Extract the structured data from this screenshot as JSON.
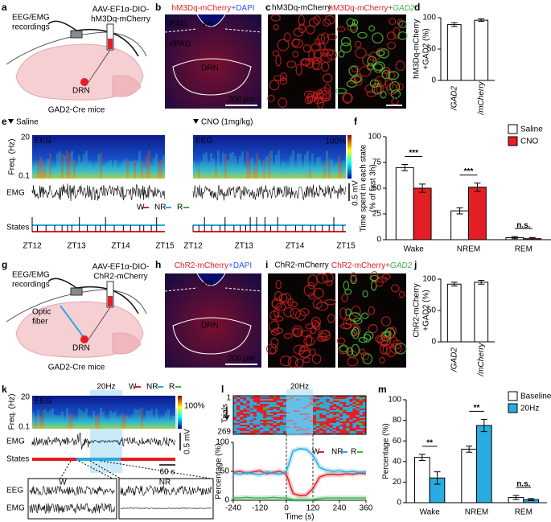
{
  "panel_labels": [
    "a",
    "b",
    "c",
    "d",
    "e",
    "f",
    "g",
    "h",
    "i",
    "j",
    "k",
    "l",
    "m"
  ],
  "state_colors": [
    "#e31e24",
    "#29abe2",
    "#39b54a"
  ],
  "a": {
    "recording": [
      "EEG/EMG",
      "recordings"
    ],
    "virus": [
      "AAV-EF1α-DIO-",
      "hM3Dq-mCherry"
    ],
    "region": "DRN",
    "mice": "GAD2-Cre mice"
  },
  "b": {
    "title": [
      "hM3Dq-mCherry",
      "+DAPI"
    ],
    "regions": [
      "lPAG",
      "Aq",
      "vlPAG",
      "DRN"
    ],
    "scale": "200 μm"
  },
  "c": {
    "left": "hM3Dq-mCherry",
    "right": [
      "hM3Dq-mCherry",
      "+",
      "GAD2"
    ],
    "scale": "20 μm"
  },
  "e": {
    "left_label": "Saline",
    "right_label": "CNO (1mg/kg)",
    "eeg": "EEG",
    "freq_label": "Freq. (Hz)",
    "freq_ticks": [
      20,
      0.1
    ],
    "emg": "EMG",
    "colorbar_max": "100%",
    "emg_scale": "0.5 mV",
    "states_legend": [
      "W",
      "NR",
      "R"
    ],
    "states": "States",
    "zt_ticks": [
      "ZT12",
      "ZT13",
      "ZT14",
      "ZT15"
    ]
  },
  "g": {
    "recording": [
      "EEG/EMG",
      "recordings"
    ],
    "virus": [
      "AAV-EF1α-DIO-",
      "ChR2-mCherry"
    ],
    "fiber": [
      "Optic",
      "fiber"
    ],
    "region": "DRN",
    "mice": "GAD2-Cre mice"
  },
  "h": {
    "title": [
      "ChR2-mCherry",
      "+DAPI"
    ],
    "regions": [
      "Aq",
      "DRN"
    ],
    "scale": "200 μm"
  },
  "i": {
    "left": "ChR2-mCherry",
    "right": [
      "ChR2-mCherry",
      "+",
      "GAD2"
    ]
  },
  "k": {
    "stim": "20Hz",
    "states_legend": [
      "W",
      "NR",
      "R"
    ],
    "eeg": "EEG",
    "freq_label": "Freq. (Hz)",
    "freq_ticks": [
      20,
      0.1
    ],
    "colorbar_max": "100%",
    "emg": "EMG",
    "emg_scale": "0.5 mV",
    "states": "States",
    "time_scale": "60 s",
    "inset_labels": [
      "W",
      "NR"
    ],
    "inset_traces": [
      "EEG",
      "EMG"
    ]
  },
  "chart_data": [
    {
      "type": "bar",
      "categories": [
        "/GAD2",
        "/mCherry"
      ],
      "values": [
        89,
        96
      ],
      "errors": [
        3,
        2
      ],
      "color": "#ffffff",
      "ylabel": [
        "hM3Dq-mCherry",
        "+GAD2 (%)"
      ],
      "ylim": [
        0,
        100
      ],
      "yticks": [
        0,
        50,
        100
      ]
    },
    {
      "type": "bar",
      "categories": [
        "Wake",
        "NREM",
        "REM"
      ],
      "series": [
        {
          "name": "Saline",
          "color": "#ffffff",
          "values": [
            70,
            28,
            2
          ],
          "errors": [
            3,
            3,
            1
          ]
        },
        {
          "name": "CNO",
          "color": "#e31e24",
          "values": [
            50,
            51,
            1
          ],
          "errors": [
            4,
            4,
            1
          ]
        }
      ],
      "ylabel": [
        "Time spent in each state",
        "(% of first 3h)"
      ],
      "ylim": [
        0,
        100
      ],
      "yticks": [
        0,
        25,
        50,
        75,
        100
      ],
      "annotations": [
        "***",
        "***",
        "n.s."
      ]
    },
    {
      "type": "bar",
      "categories": [
        "/GAD2",
        "/mCherry"
      ],
      "values": [
        92,
        95
      ],
      "errors": [
        3,
        3
      ],
      "color": "#ffffff",
      "ylabel": [
        "ChR2-mCherry",
        "+GAD2 (%)"
      ],
      "ylim": [
        0,
        100
      ],
      "yticks": [
        0,
        50,
        100
      ]
    },
    {
      "type": "bar",
      "categories": [
        "Wake",
        "NREM",
        "REM"
      ],
      "series": [
        {
          "name": "Baseline",
          "color": "#ffffff",
          "values": [
            44,
            52,
            5
          ],
          "errors": [
            3,
            3,
            2
          ]
        },
        {
          "name": "20Hz",
          "color": "#29abe2",
          "values": [
            24,
            75,
            3
          ],
          "errors": [
            6,
            6,
            1
          ]
        }
      ],
      "ylabel": [
        "Percentage (%)"
      ],
      "ylim": [
        0,
        100
      ],
      "yticks": [
        0,
        20,
        40,
        60,
        80,
        100
      ],
      "annotations": [
        "**",
        "**",
        "n.s."
      ]
    },
    {
      "type": "line",
      "title": "20Hz",
      "x": [
        -240,
        -210,
        -180,
        -150,
        -120,
        -90,
        -60,
        -30,
        0,
        30,
        60,
        90,
        120,
        150,
        180,
        210,
        240,
        270,
        300,
        330,
        360
      ],
      "series": [
        {
          "name": "W",
          "color": "#e31e24",
          "values": [
            48,
            50,
            47,
            49,
            51,
            46,
            48,
            50,
            45,
            12,
            8,
            9,
            20,
            40,
            44,
            45,
            44,
            46,
            45,
            47,
            46
          ]
        },
        {
          "name": "NR",
          "color": "#29abe2",
          "values": [
            47,
            45,
            48,
            46,
            44,
            49,
            47,
            45,
            50,
            85,
            89,
            88,
            78,
            57,
            52,
            50,
            51,
            49,
            50,
            48,
            49
          ]
        },
        {
          "name": "R",
          "color": "#39b54a",
          "values": [
            4,
            4,
            5,
            4,
            4,
            4,
            5,
            4,
            4,
            1,
            1,
            1,
            1,
            3,
            4,
            4,
            4,
            4,
            4,
            4,
            4
          ]
        }
      ],
      "xlabel": "Time (s)",
      "ylabel": "Percentage (%)",
      "xlim": [
        -240,
        360
      ],
      "ylim": [
        0,
        100
      ],
      "xticks": [
        -240,
        -120,
        0,
        120,
        240,
        360
      ],
      "yticks": [
        0,
        50,
        100
      ],
      "heatmap_label": "Trials",
      "trials": [
        1,
        269
      ]
    }
  ]
}
